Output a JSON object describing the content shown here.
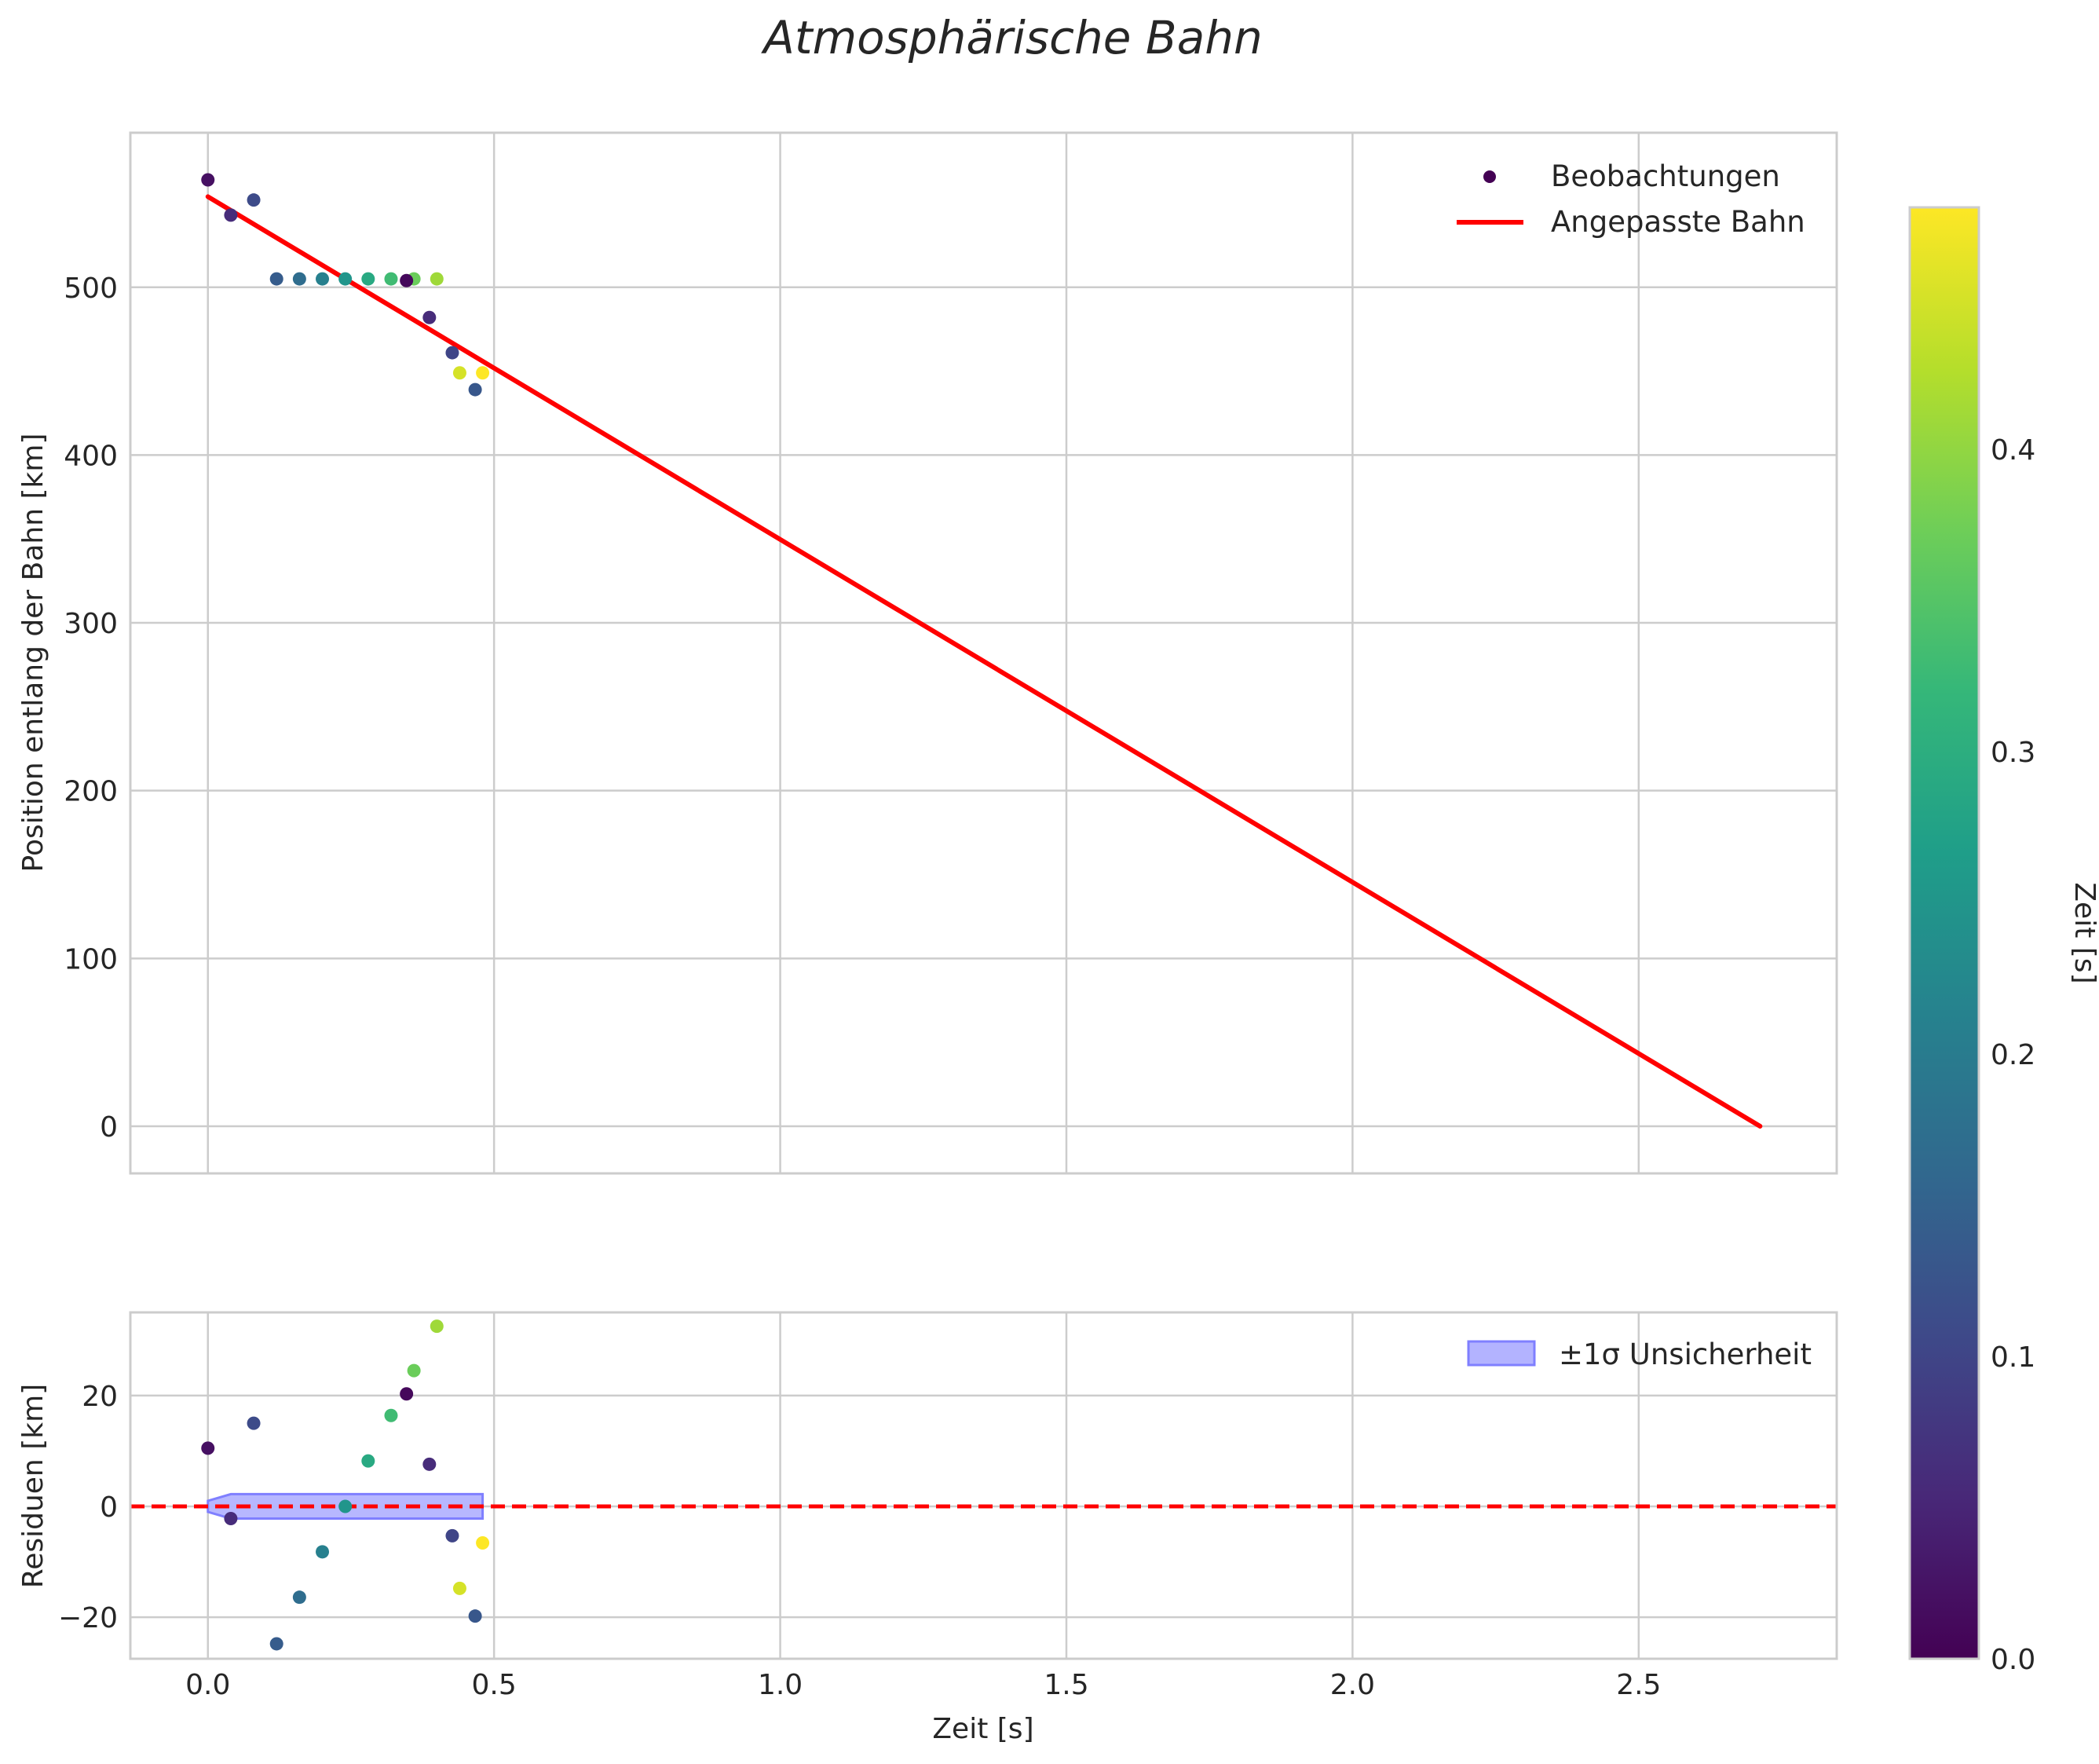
{
  "title": "Atmosphärische Bahn",
  "chart_data": [
    {
      "type": "scatter",
      "panel": "top",
      "xlabel": "",
      "ylabel": "Position entlang der Bahn [km]",
      "xlim": [
        -0.1355,
        2.846
      ],
      "ylim": [
        -28.1,
        592.1
      ],
      "xticks": [
        0.0,
        0.5,
        1.0,
        1.5,
        2.0,
        2.5
      ],
      "yticks": [
        0,
        100,
        200,
        300,
        400,
        500
      ],
      "ytick_labels": [
        "0",
        "100",
        "200",
        "300",
        "400",
        "500"
      ],
      "legend": [
        "Beobachtungen",
        "Angepasste Bahn"
      ],
      "legend_position": "top-right",
      "observations": {
        "name": "Beobachtungen",
        "t": [
          0.0,
          0.04,
          0.08,
          0.12,
          0.16,
          0.2,
          0.24,
          0.28,
          0.32,
          0.36,
          0.4,
          0.347,
          0.387,
          0.427,
          0.44,
          0.467,
          0.48
        ],
        "y": [
          564,
          543,
          552,
          505,
          505,
          505,
          505,
          505,
          505,
          505,
          505,
          504,
          482,
          461,
          449,
          439,
          449
        ],
        "c": [
          0.02,
          0.06,
          0.11,
          0.14,
          0.17,
          0.21,
          0.25,
          0.29,
          0.33,
          0.37,
          0.41,
          0.01,
          0.06,
          0.1,
          0.45,
          0.13,
          0.48
        ]
      },
      "fit": {
        "name": "Angepasste Bahn",
        "t": [
          0.0,
          2.712
        ],
        "y": [
          554,
          0
        ],
        "color": "#ff0000"
      }
    },
    {
      "type": "scatter",
      "panel": "bottom",
      "xlabel": "Zeit [s]",
      "ylabel": "Residuen [km]",
      "xlim": [
        -0.1355,
        2.846
      ],
      "ylim": [
        -27.5,
        35.0
      ],
      "xticks": [
        0.0,
        0.5,
        1.0,
        1.5,
        2.0,
        2.5
      ],
      "xtick_labels": [
        "0.0",
        "0.5",
        "1.0",
        "1.5",
        "2.0",
        "2.5"
      ],
      "yticks": [
        -20,
        0,
        20
      ],
      "ytick_labels": [
        "−20",
        "0",
        "20"
      ],
      "legend": [
        "±1σ Unsicherheit"
      ],
      "legend_position": "top-right",
      "residuals": {
        "t": [
          0.0,
          0.04,
          0.08,
          0.12,
          0.16,
          0.2,
          0.24,
          0.28,
          0.32,
          0.36,
          0.4,
          0.347,
          0.387,
          0.427,
          0.44,
          0.467,
          0.48
        ],
        "r": [
          10.5,
          -2.2,
          15.0,
          -24.8,
          -16.4,
          -8.2,
          0.0,
          8.2,
          16.4,
          24.5,
          32.5,
          20.3,
          7.6,
          -5.3,
          -14.8,
          -19.8,
          -6.6
        ],
        "c": [
          0.02,
          0.06,
          0.11,
          0.14,
          0.17,
          0.21,
          0.25,
          0.29,
          0.33,
          0.37,
          0.41,
          0.01,
          0.06,
          0.1,
          0.45,
          0.13,
          0.48
        ]
      },
      "band": {
        "name": "±1σ Unsicherheit",
        "t": [
          0.0,
          0.04,
          0.08,
          0.12,
          0.16,
          0.2,
          0.24,
          0.28,
          0.32,
          0.36,
          0.4,
          0.44,
          0.48
        ],
        "lower": [
          -1.0,
          -2.2,
          -2.2,
          -2.2,
          -2.2,
          -2.2,
          -2.2,
          -2.2,
          -2.2,
          -2.2,
          -2.2,
          -2.2,
          -2.2
        ],
        "upper": [
          1.0,
          2.2,
          2.2,
          2.2,
          2.2,
          2.2,
          2.2,
          2.2,
          2.2,
          2.2,
          2.2,
          2.2,
          2.2
        ],
        "color": "#0000ff"
      },
      "zero_line": {
        "value": 0,
        "style": "dashed",
        "color": "#ff0000"
      }
    }
  ],
  "colorbar": {
    "label": "Zeit [s]",
    "range": [
      0.0,
      0.48
    ],
    "ticks": [
      0.0,
      0.1,
      0.2,
      0.3,
      0.4
    ],
    "tick_labels": [
      "0.0",
      "0.1",
      "0.2",
      "0.3",
      "0.4"
    ],
    "colormap": "viridis",
    "stops": [
      "#440154",
      "#482878",
      "#3e4989",
      "#31688e",
      "#26828e",
      "#1f9e89",
      "#35b779",
      "#6ece58",
      "#b5de2b",
      "#fde725"
    ]
  },
  "colors": {
    "grid": "#cccccc",
    "spine": "#cccccc",
    "fit_line": "#ff0000",
    "band_fill": "#b3b3ff",
    "band_edge": "#7f7fff"
  }
}
